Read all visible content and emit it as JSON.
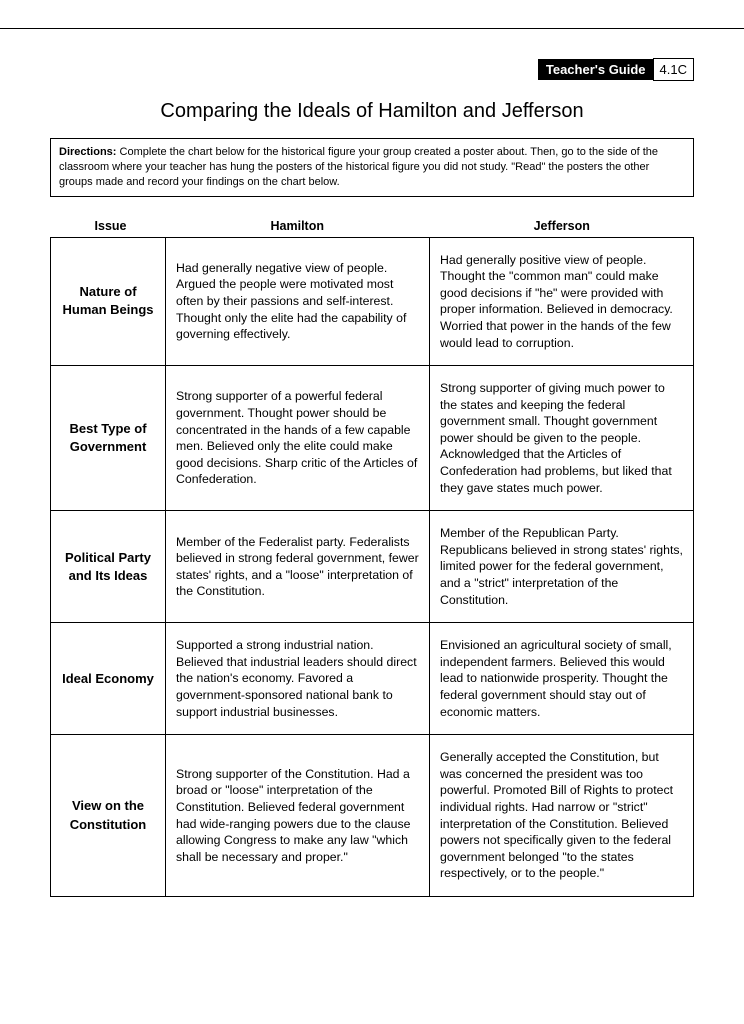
{
  "header": {
    "guide_label": "Teacher's Guide",
    "guide_code": "4.1C"
  },
  "title": "Comparing the Ideals of Hamilton and Jefferson",
  "directions_label": "Directions:",
  "directions_text": "Complete the chart below for the historical figure your group created a poster about. Then, go to the side of the classroom where your teacher has hung the posters of the historical figure you did not study. \"Read\" the posters the other groups made and record your findings on the chart below.",
  "columns": {
    "issue": "Issue",
    "hamilton": "Hamilton",
    "jefferson": "Jefferson"
  },
  "rows": [
    {
      "issue": "Nature of Human Beings",
      "hamilton": "Had generally negative view of people. Argued the people were motivated most often by their passions and self-interest. Thought only the elite had the capability of governing effectively.",
      "jefferson": "Had generally positive view of people. Thought the \"common man\" could make good decisions if \"he\" were provided with proper information. Believed in democracy. Worried that power in the hands of the few would lead to corruption."
    },
    {
      "issue": "Best Type of Government",
      "hamilton": "Strong supporter of a powerful federal government. Thought power should be concentrated in the hands of a few capable men. Believed only the elite could make good decisions. Sharp critic of the Articles of Confederation.",
      "jefferson": "Strong supporter of giving much power to the states and keeping the federal government small. Thought government power should be given to the people. Acknowledged that the Articles of Confederation had problems, but liked that they gave states much power."
    },
    {
      "issue": "Political Party and Its Ideas",
      "hamilton": "Member of the Federalist party. Federalists believed in strong federal government, fewer states' rights, and a \"loose\" interpretation of the Constitution.",
      "jefferson": "Member of the Republican Party. Republicans believed in strong states' rights, limited power for the federal government, and a \"strict\" interpretation of the Constitution."
    },
    {
      "issue": "Ideal Economy",
      "hamilton": "Supported a strong industrial nation. Believed that industrial leaders should direct the nation's economy. Favored a government-sponsored national bank to support industrial businesses.",
      "jefferson": "Envisioned an agricultural society of small, independent farmers. Believed this would lead to nationwide prosperity. Thought the federal government should stay out of economic matters."
    },
    {
      "issue": "View on the Constitution",
      "hamilton": "Strong supporter of the Constitution. Had a broad or \"loose\" interpretation of the Constitution. Believed federal government had wide-ranging powers due to the clause allowing Congress to make any law \"which shall be necessary and proper.\"",
      "jefferson": "Generally accepted the Constitution, but was concerned the president was too powerful. Promoted Bill of Rights to protect individual rights. Had narrow or \"strict\" interpretation of the Constitution. Believed powers not specifically given to the federal government belonged \"to the states respectively, or to the people.\""
    }
  ]
}
